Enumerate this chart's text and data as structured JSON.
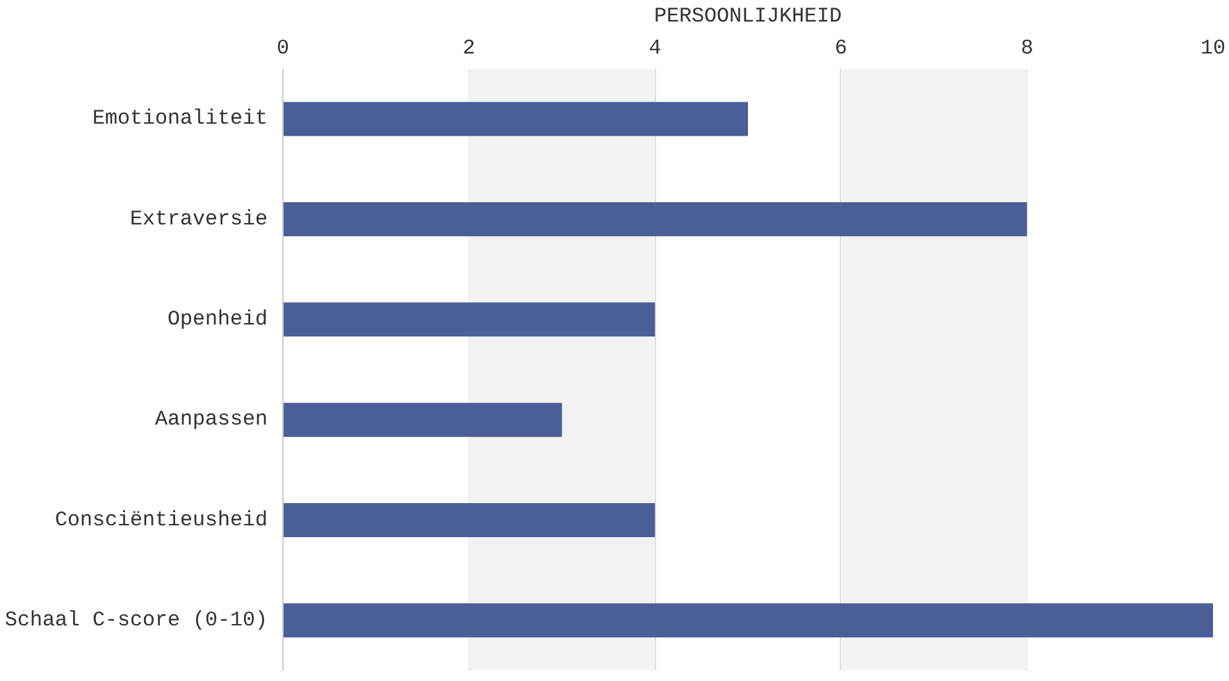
{
  "chart_data": {
    "type": "bar",
    "orientation": "horizontal",
    "xlabel": "PERSOONLIJKHEID",
    "categories": [
      "Emotionaliteit",
      "Extraversie",
      "Openheid",
      "Aanpassen",
      "Consciëntieusheid",
      "Schaal C-score (0-10)"
    ],
    "values": [
      5,
      8,
      4,
      3,
      4,
      10
    ],
    "color": "#4a5f98",
    "xlim": [
      0,
      10
    ],
    "xticks": [
      0,
      2,
      4,
      6,
      8,
      10
    ],
    "grid": "x",
    "bands": [
      {
        "axis": "x",
        "from": 2,
        "to": 4,
        "color": "#f3f3f3"
      },
      {
        "axis": "x",
        "from": 6,
        "to": 8,
        "color": "#f3f3f3"
      }
    ]
  }
}
